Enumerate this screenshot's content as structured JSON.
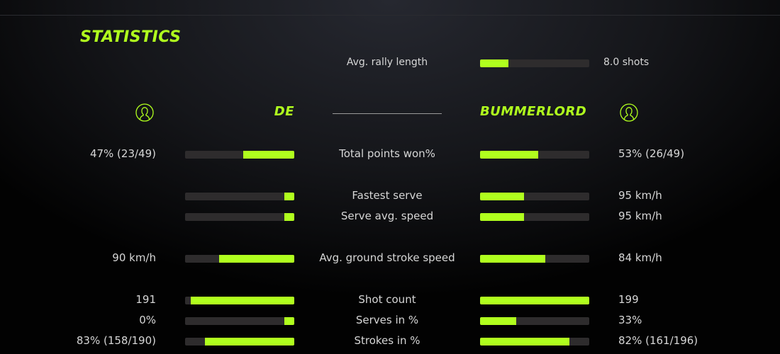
{
  "colors": {
    "accent": "#b0ff1e",
    "track": "#2e2c2d"
  },
  "title": "STATISTICS",
  "rally": {
    "label": "Avg. rally length",
    "value": "8.0 shots",
    "fraction": 0.26
  },
  "players": {
    "left": {
      "name": "DE",
      "icon": "user-icon"
    },
    "right": {
      "name": "BUMMERLORD",
      "icon": "user-icon"
    }
  },
  "rows": [
    {
      "label": "Total points won%",
      "left": "47% (23/49)",
      "right": "53% (26/49)",
      "left_fraction": 0.47,
      "right_fraction": 0.53
    },
    {
      "label": "Fastest serve",
      "left": "",
      "right": "95 km/h",
      "left_fraction": 0.09,
      "right_fraction": 0.4
    },
    {
      "label": "Serve avg. speed",
      "left": "",
      "right": "95 km/h",
      "left_fraction": 0.09,
      "right_fraction": 0.4
    },
    {
      "label": "Avg. ground stroke speed",
      "left": "90 km/h",
      "right": "84 km/h",
      "left_fraction": 0.69,
      "right_fraction": 0.6
    },
    {
      "label": "Shot count",
      "left": "191",
      "right": "199",
      "left_fraction": 0.95,
      "right_fraction": 1.0
    },
    {
      "label": "Serves in %",
      "left": "0%",
      "right": "33%",
      "left_fraction": 0.09,
      "right_fraction": 0.33
    },
    {
      "label": "Strokes in %",
      "left": "83% (158/190)",
      "right": "82% (161/196)",
      "left_fraction": 0.82,
      "right_fraction": 0.82
    }
  ]
}
